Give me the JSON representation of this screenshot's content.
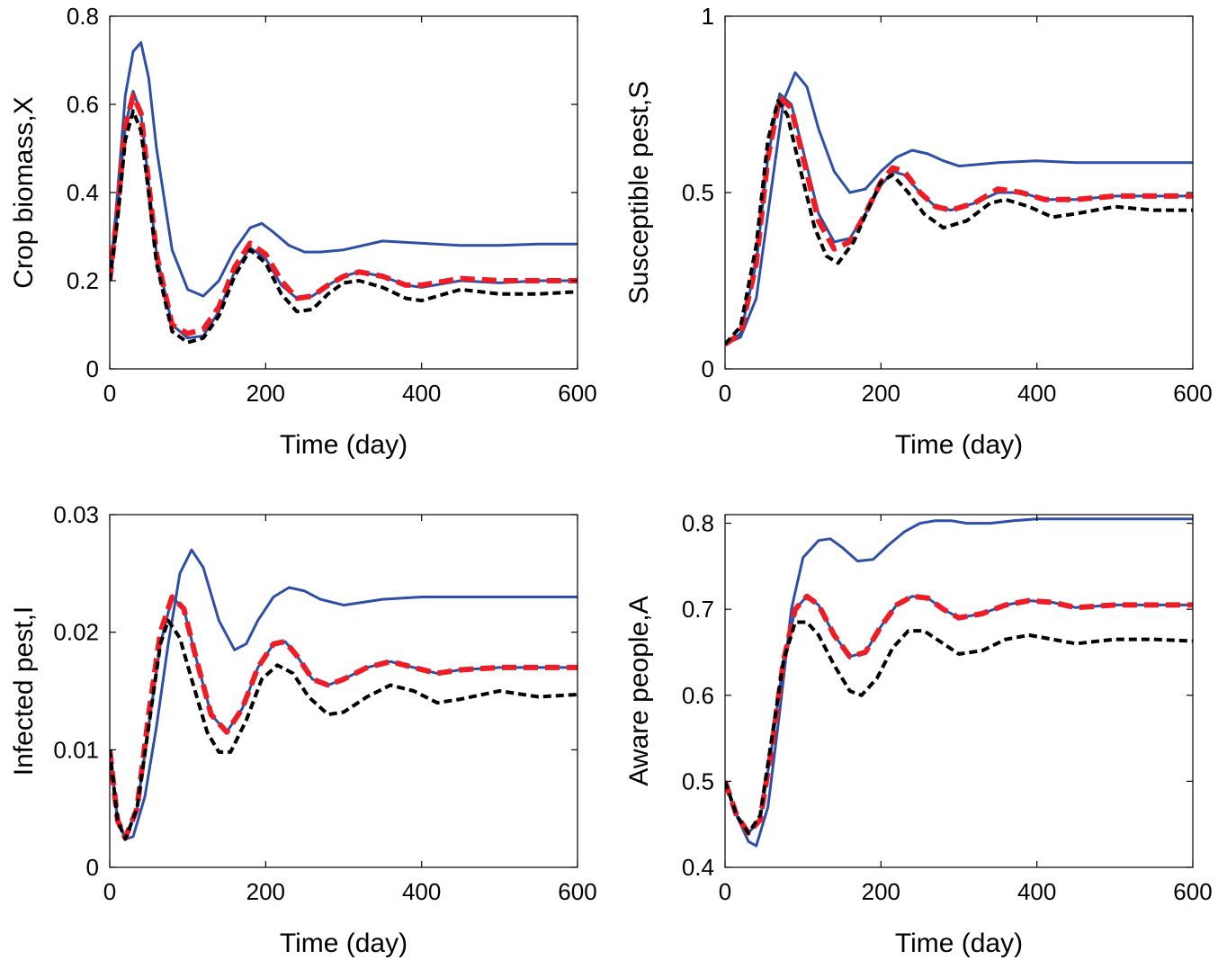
{
  "figure": {
    "panel_count": 4
  },
  "colors": {
    "blue": "#2e4fa6",
    "red": "#ee1c24",
    "black": "#000000",
    "axis": "#000000"
  },
  "chart_data": [
    {
      "type": "line",
      "xlabel": "Time (day)",
      "ylabel": "Crop biomass,X",
      "xlim": [
        0,
        600
      ],
      "ylim": [
        0,
        0.8
      ],
      "xticks": [
        "0",
        "200",
        "400",
        "600"
      ],
      "yticks": [
        "0",
        "0.2",
        "0.4",
        "0.6",
        "0.8"
      ],
      "grid": false,
      "series": [
        {
          "color": "#2e4fa6",
          "style": "solid",
          "x": [
            0,
            10,
            20,
            30,
            40,
            50,
            60,
            80,
            100,
            120,
            140,
            160,
            180,
            195,
            210,
            230,
            250,
            270,
            300,
            350,
            400,
            450,
            500,
            550,
            600
          ],
          "y": [
            0.2,
            0.4,
            0.62,
            0.72,
            0.74,
            0.66,
            0.5,
            0.27,
            0.18,
            0.165,
            0.2,
            0.27,
            0.32,
            0.33,
            0.31,
            0.28,
            0.265,
            0.265,
            0.27,
            0.29,
            0.285,
            0.28,
            0.28,
            0.283,
            0.283
          ]
        },
        {
          "color": "#2e4fa6",
          "style": "solid",
          "x": [
            0,
            10,
            20,
            30,
            40,
            50,
            60,
            80,
            100,
            120,
            140,
            160,
            180,
            200,
            220,
            240,
            260,
            280,
            300,
            320,
            350,
            380,
            400,
            450,
            500,
            550,
            600
          ],
          "y": [
            0.2,
            0.36,
            0.55,
            0.63,
            0.58,
            0.42,
            0.26,
            0.1,
            0.07,
            0.075,
            0.13,
            0.22,
            0.275,
            0.25,
            0.19,
            0.16,
            0.165,
            0.19,
            0.21,
            0.22,
            0.21,
            0.19,
            0.185,
            0.2,
            0.195,
            0.2,
            0.2
          ]
        },
        {
          "color": "#ee1c24",
          "style": "dashed",
          "x": [
            0,
            10,
            20,
            30,
            40,
            50,
            60,
            80,
            100,
            120,
            140,
            160,
            180,
            200,
            220,
            240,
            260,
            280,
            300,
            320,
            350,
            380,
            400,
            450,
            500,
            550,
            600
          ],
          "y": [
            0.2,
            0.36,
            0.55,
            0.62,
            0.58,
            0.42,
            0.26,
            0.1,
            0.08,
            0.09,
            0.14,
            0.23,
            0.285,
            0.26,
            0.2,
            0.16,
            0.165,
            0.19,
            0.21,
            0.22,
            0.21,
            0.19,
            0.19,
            0.205,
            0.2,
            0.2,
            0.2
          ]
        },
        {
          "color": "#000000",
          "style": "dashed",
          "x": [
            0,
            10,
            20,
            30,
            40,
            50,
            60,
            80,
            100,
            120,
            140,
            160,
            180,
            200,
            220,
            240,
            260,
            280,
            300,
            320,
            350,
            380,
            400,
            450,
            500,
            550,
            600
          ],
          "y": [
            0.2,
            0.34,
            0.52,
            0.585,
            0.54,
            0.4,
            0.24,
            0.085,
            0.06,
            0.07,
            0.12,
            0.21,
            0.27,
            0.24,
            0.17,
            0.13,
            0.135,
            0.17,
            0.195,
            0.2,
            0.185,
            0.16,
            0.155,
            0.18,
            0.17,
            0.17,
            0.175
          ]
        }
      ]
    },
    {
      "type": "line",
      "xlabel": "Time (day)",
      "ylabel": "Susceptible pest,S",
      "xlim": [
        0,
        600
      ],
      "ylim": [
        0,
        1
      ],
      "xticks": [
        "0",
        "200",
        "400",
        "600"
      ],
      "yticks": [
        "0",
        "0.5",
        "1"
      ],
      "grid": false,
      "series": [
        {
          "color": "#2e4fa6",
          "style": "solid",
          "x": [
            0,
            20,
            40,
            60,
            75,
            90,
            105,
            120,
            140,
            160,
            180,
            200,
            220,
            240,
            260,
            280,
            300,
            350,
            400,
            450,
            500,
            550,
            600
          ],
          "y": [
            0.07,
            0.09,
            0.2,
            0.52,
            0.76,
            0.84,
            0.8,
            0.68,
            0.56,
            0.5,
            0.51,
            0.56,
            0.6,
            0.62,
            0.61,
            0.59,
            0.575,
            0.585,
            0.59,
            0.585,
            0.585,
            0.585,
            0.585
          ]
        },
        {
          "color": "#2e4fa6",
          "style": "solid",
          "x": [
            0,
            20,
            40,
            55,
            70,
            85,
            100,
            120,
            140,
            160,
            180,
            200,
            215,
            230,
            250,
            270,
            290,
            320,
            350,
            380,
            410,
            450,
            500,
            550,
            600
          ],
          "y": [
            0.07,
            0.1,
            0.3,
            0.6,
            0.78,
            0.75,
            0.62,
            0.44,
            0.36,
            0.37,
            0.44,
            0.52,
            0.56,
            0.55,
            0.5,
            0.46,
            0.45,
            0.47,
            0.5,
            0.5,
            0.48,
            0.48,
            0.49,
            0.49,
            0.49
          ]
        },
        {
          "color": "#ee1c24",
          "style": "dashed",
          "x": [
            0,
            20,
            40,
            55,
            70,
            85,
            100,
            120,
            140,
            160,
            180,
            200,
            215,
            230,
            250,
            270,
            290,
            320,
            350,
            380,
            410,
            450,
            500,
            550,
            600
          ],
          "y": [
            0.07,
            0.1,
            0.3,
            0.6,
            0.77,
            0.74,
            0.6,
            0.42,
            0.34,
            0.36,
            0.44,
            0.53,
            0.57,
            0.56,
            0.5,
            0.46,
            0.45,
            0.47,
            0.51,
            0.5,
            0.48,
            0.48,
            0.49,
            0.49,
            0.49
          ]
        },
        {
          "color": "#000000",
          "style": "dashed",
          "x": [
            0,
            20,
            40,
            55,
            68,
            80,
            95,
            115,
            130,
            145,
            165,
            185,
            200,
            215,
            235,
            255,
            280,
            310,
            340,
            360,
            390,
            420,
            450,
            500,
            550,
            600
          ],
          "y": [
            0.07,
            0.12,
            0.35,
            0.65,
            0.76,
            0.72,
            0.58,
            0.4,
            0.32,
            0.3,
            0.36,
            0.46,
            0.53,
            0.55,
            0.5,
            0.44,
            0.4,
            0.42,
            0.47,
            0.48,
            0.46,
            0.43,
            0.44,
            0.46,
            0.45,
            0.45
          ]
        }
      ]
    },
    {
      "type": "line",
      "xlabel": "Time (day)",
      "ylabel": "Infected pest,I",
      "xlim": [
        0,
        600
      ],
      "ylim": [
        0,
        0.03
      ],
      "xticks": [
        "0",
        "200",
        "400",
        "600"
      ],
      "yticks": [
        "0",
        "0.01",
        "0.02",
        "0.03"
      ],
      "grid": false,
      "series": [
        {
          "color": "#2e4fa6",
          "style": "solid",
          "x": [
            0,
            10,
            20,
            30,
            45,
            60,
            75,
            90,
            105,
            120,
            140,
            160,
            175,
            190,
            210,
            230,
            250,
            270,
            300,
            350,
            400,
            450,
            500,
            550,
            600
          ],
          "y": [
            0.01,
            0.004,
            0.0024,
            0.0026,
            0.006,
            0.012,
            0.019,
            0.025,
            0.027,
            0.0255,
            0.021,
            0.0185,
            0.019,
            0.021,
            0.023,
            0.0238,
            0.0235,
            0.0228,
            0.0223,
            0.0228,
            0.023,
            0.023,
            0.023,
            0.023,
            0.023
          ]
        },
        {
          "color": "#2e4fa6",
          "style": "solid",
          "x": [
            0,
            10,
            20,
            35,
            50,
            65,
            80,
            95,
            110,
            130,
            150,
            170,
            190,
            210,
            225,
            240,
            260,
            280,
            300,
            330,
            360,
            390,
            420,
            450,
            500,
            550,
            600
          ],
          "y": [
            0.01,
            0.004,
            0.0025,
            0.005,
            0.012,
            0.019,
            0.023,
            0.022,
            0.018,
            0.013,
            0.0115,
            0.0135,
            0.017,
            0.019,
            0.0192,
            0.018,
            0.016,
            0.0155,
            0.016,
            0.017,
            0.0175,
            0.017,
            0.0165,
            0.0168,
            0.017,
            0.017,
            0.017
          ]
        },
        {
          "color": "#ee1c24",
          "style": "dashed",
          "x": [
            0,
            10,
            20,
            35,
            50,
            65,
            80,
            95,
            110,
            130,
            150,
            170,
            190,
            210,
            225,
            240,
            260,
            280,
            300,
            330,
            360,
            390,
            420,
            450,
            500,
            550,
            600
          ],
          "y": [
            0.01,
            0.004,
            0.0025,
            0.005,
            0.013,
            0.02,
            0.023,
            0.022,
            0.018,
            0.013,
            0.0115,
            0.0135,
            0.017,
            0.019,
            0.0192,
            0.018,
            0.016,
            0.0155,
            0.016,
            0.017,
            0.0175,
            0.017,
            0.0165,
            0.0168,
            0.017,
            0.017,
            0.017
          ]
        },
        {
          "color": "#000000",
          "style": "dashed",
          "x": [
            0,
            10,
            20,
            35,
            50,
            65,
            75,
            90,
            105,
            125,
            140,
            155,
            175,
            195,
            215,
            235,
            255,
            280,
            300,
            330,
            360,
            390,
            420,
            450,
            500,
            550,
            600
          ],
          "y": [
            0.01,
            0.004,
            0.0024,
            0.005,
            0.012,
            0.019,
            0.021,
            0.0195,
            0.016,
            0.0115,
            0.0098,
            0.0098,
            0.0125,
            0.016,
            0.0172,
            0.0165,
            0.0145,
            0.013,
            0.0132,
            0.0145,
            0.0155,
            0.015,
            0.014,
            0.0143,
            0.015,
            0.0145,
            0.0147
          ]
        }
      ]
    },
    {
      "type": "line",
      "xlabel": "Time (day)",
      "ylabel": "Aware people,A",
      "xlim": [
        0,
        600
      ],
      "ylim": [
        0.4,
        0.81
      ],
      "xticks": [
        "0",
        "200",
        "400",
        "600"
      ],
      "yticks": [
        "0.4",
        "0.5",
        "0.6",
        "0.7",
        "0.8"
      ],
      "grid": false,
      "series": [
        {
          "color": "#2e4fa6",
          "style": "solid",
          "x": [
            0,
            15,
            30,
            40,
            55,
            70,
            85,
            100,
            120,
            135,
            150,
            170,
            190,
            210,
            230,
            250,
            270,
            290,
            310,
            340,
            370,
            400,
            450,
            500,
            550,
            600
          ],
          "y": [
            0.5,
            0.46,
            0.43,
            0.425,
            0.47,
            0.58,
            0.7,
            0.76,
            0.78,
            0.782,
            0.772,
            0.756,
            0.758,
            0.775,
            0.79,
            0.8,
            0.803,
            0.803,
            0.8,
            0.8,
            0.803,
            0.805,
            0.805,
            0.805,
            0.805,
            0.805
          ]
        },
        {
          "color": "#2e4fa6",
          "style": "solid",
          "x": [
            0,
            15,
            30,
            45,
            60,
            75,
            90,
            105,
            120,
            140,
            160,
            180,
            200,
            220,
            240,
            260,
            280,
            300,
            330,
            360,
            390,
            420,
            450,
            500,
            550,
            600
          ],
          "y": [
            0.5,
            0.46,
            0.44,
            0.455,
            0.54,
            0.64,
            0.7,
            0.715,
            0.705,
            0.67,
            0.645,
            0.65,
            0.68,
            0.705,
            0.715,
            0.713,
            0.7,
            0.69,
            0.695,
            0.705,
            0.71,
            0.708,
            0.702,
            0.705,
            0.705,
            0.705
          ]
        },
        {
          "color": "#ee1c24",
          "style": "dashed",
          "x": [
            0,
            15,
            30,
            45,
            60,
            75,
            90,
            105,
            120,
            140,
            160,
            180,
            200,
            220,
            240,
            260,
            280,
            300,
            330,
            360,
            390,
            420,
            450,
            500,
            550,
            600
          ],
          "y": [
            0.5,
            0.46,
            0.44,
            0.455,
            0.54,
            0.64,
            0.7,
            0.715,
            0.705,
            0.67,
            0.645,
            0.65,
            0.68,
            0.705,
            0.715,
            0.713,
            0.7,
            0.69,
            0.695,
            0.705,
            0.71,
            0.708,
            0.702,
            0.705,
            0.705,
            0.705
          ]
        },
        {
          "color": "#000000",
          "style": "dashed",
          "x": [
            0,
            15,
            30,
            45,
            60,
            75,
            90,
            105,
            120,
            140,
            160,
            175,
            195,
            215,
            235,
            255,
            280,
            300,
            330,
            360,
            390,
            420,
            450,
            500,
            550,
            600
          ],
          "y": [
            0.5,
            0.46,
            0.44,
            0.46,
            0.55,
            0.64,
            0.685,
            0.685,
            0.67,
            0.635,
            0.605,
            0.6,
            0.62,
            0.655,
            0.675,
            0.675,
            0.66,
            0.648,
            0.652,
            0.665,
            0.67,
            0.665,
            0.66,
            0.665,
            0.665,
            0.663
          ]
        }
      ]
    }
  ]
}
